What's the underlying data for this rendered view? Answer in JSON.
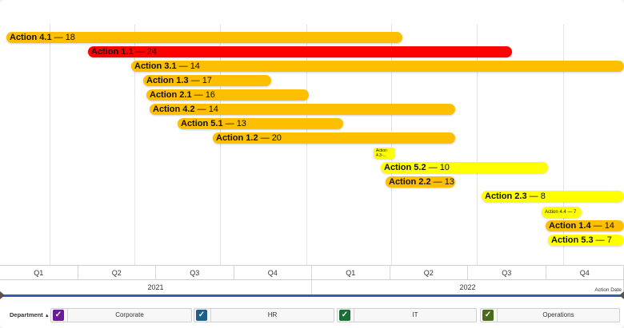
{
  "colors": {
    "amber": "#fdbf00",
    "red": "#ff0000",
    "yellow": "#ffff00",
    "track": "#2f5fa8"
  },
  "timeline": {
    "quarters": [
      "Q1",
      "Q2",
      "Q3",
      "Q4",
      "Q1",
      "Q2",
      "Q3",
      "Q4"
    ],
    "years": [
      "2021",
      "2022"
    ],
    "axis_title": "Action Date"
  },
  "bars": [
    {
      "name": "Action 4.1",
      "value": "18",
      "color": "#fdbf00"
    },
    {
      "name": "Action 1.1",
      "value": "24",
      "color": "#ff0000"
    },
    {
      "name": "Action 3.1",
      "value": "14",
      "color": "#fdbf00"
    },
    {
      "name": "Action 1.3",
      "value": "17",
      "color": "#fdbf00"
    },
    {
      "name": "Action 2.1",
      "value": "16",
      "color": "#fdbf00"
    },
    {
      "name": "Action 4.2",
      "value": "14",
      "color": "#fdbf00"
    },
    {
      "name": "Action 5.1",
      "value": "13",
      "color": "#fdbf00"
    },
    {
      "name": "Action 1.2",
      "value": "20",
      "color": "#fdbf00"
    },
    {
      "name": "Action 4.3",
      "value": "",
      "short_label": "Action 4.3-...",
      "color": "#ffff00"
    },
    {
      "name": "Action 5.2",
      "value": "10",
      "color": "#ffff00"
    },
    {
      "name": "Action 2.2",
      "value": "13",
      "color": "#fdbf00"
    },
    {
      "name": "Action 2.3",
      "value": "8",
      "color": "#ffff00"
    },
    {
      "name": "Action 4.4",
      "value": "7",
      "color": "#ffff00"
    },
    {
      "name": "Action 1.4",
      "value": "14",
      "color": "#fdbf00"
    },
    {
      "name": "Action 5.3",
      "value": "7",
      "color": "#ffff00"
    }
  ],
  "legend": {
    "title": "Department",
    "sort_icon": "sort-up-icon",
    "filters": [
      {
        "label": "Corporate",
        "color": "#6a1b9a"
      },
      {
        "label": "HR",
        "color": "#1f5f8b"
      },
      {
        "label": "IT",
        "color": "#1b6e3a"
      },
      {
        "label": "Operations",
        "color": "#4a6b1e"
      }
    ]
  }
}
